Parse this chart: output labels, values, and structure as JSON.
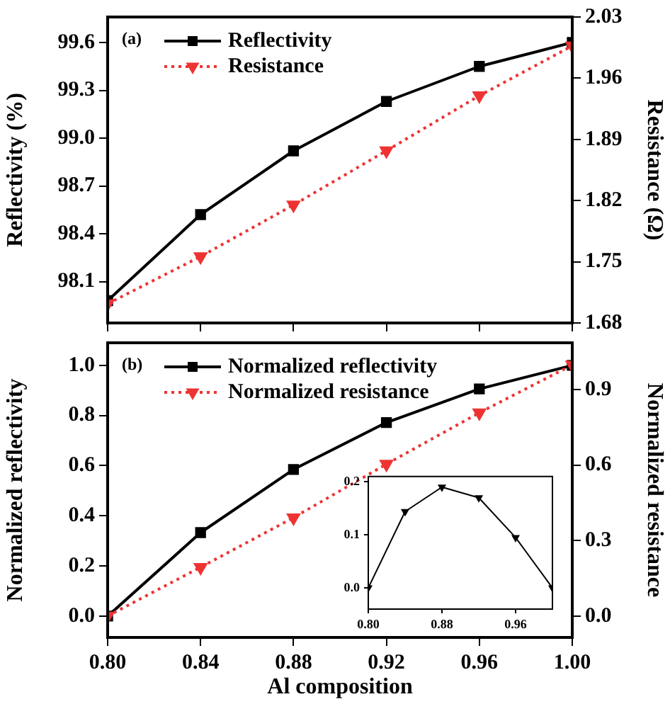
{
  "chart_data": [
    {
      "type": "line",
      "ylabel": "Reflectivity (%)",
      "y2label": "Resistance (Ω)",
      "annotations": [
        "(a)"
      ],
      "x": [
        0.8,
        0.84,
        0.88,
        0.92,
        0.96,
        1.0
      ],
      "series": [
        {
          "name": "Reflectivity",
          "color": "#000000",
          "values": [
            97.98,
            98.52,
            98.92,
            99.23,
            99.45,
            99.6
          ],
          "marker": "square",
          "line_style": "solid"
        },
        {
          "name": "Resistance",
          "color": "#ee3333",
          "values": [
            1.702,
            1.756,
            1.815,
            1.877,
            1.94,
            1.997
          ],
          "axis": "y2",
          "marker": "triangle",
          "line_style": "dotted"
        }
      ],
      "xlim": [
        0.8,
        1.0
      ],
      "xticks": [
        {
          "value": 0.8,
          "label": null
        },
        {
          "value": 0.84,
          "label": null
        },
        {
          "value": 0.88,
          "label": null
        },
        {
          "value": 0.92,
          "label": null
        },
        {
          "value": 0.96,
          "label": null
        },
        {
          "value": 1.0,
          "label": null
        }
      ],
      "ylim": [
        97.84,
        99.76
      ],
      "yticks": [
        98.1,
        98.4,
        98.7,
        {
          "value": 99.0,
          "label": "99.0"
        },
        99.3,
        99.6
      ],
      "y2lim": [
        1.68,
        2.03
      ],
      "y2ticks": [
        1.68,
        1.75,
        1.82,
        1.89,
        1.96,
        2.03
      ],
      "tick_labels": "y",
      "legend": "top left",
      "grid": false
    },
    {
      "type": "line",
      "xlabel": "Al composition",
      "ylabel": "Normalized reflectivity",
      "y2label": "Normalized resistance",
      "annotations": [
        "(b)"
      ],
      "x": [
        0.8,
        0.84,
        0.88,
        0.92,
        0.96,
        1.0
      ],
      "series": [
        {
          "name": "Normalized reflectivity",
          "color": "#000000",
          "values": [
            0.0,
            0.333,
            0.585,
            0.772,
            0.906,
            1.0
          ],
          "marker": "square",
          "line_style": "solid"
        },
        {
          "name": "Normalized resistance",
          "color": "#ee3333",
          "values": [
            0.0,
            0.194,
            0.391,
            0.604,
            0.808,
            0.998
          ],
          "axis": "y2",
          "marker": "triangle",
          "line_style": "dotted"
        }
      ],
      "xlim": [
        0.8,
        1.0
      ],
      "xticks": [
        {
          "value": 0.8,
          "label": "0.80"
        },
        0.84,
        0.88,
        0.92,
        0.96,
        {
          "value": 1.0,
          "label": "1.00"
        }
      ],
      "ylim": [
        -0.085,
        1.09
      ],
      "yticks": [
        {
          "value": 0.0,
          "label": "0.0"
        },
        0.2,
        0.4,
        0.6,
        0.8,
        {
          "value": 1.0,
          "label": "1.0"
        }
      ],
      "y2lim": [
        -0.085,
        1.086
      ],
      "y2ticks": [
        {
          "value": 0.0,
          "label": "0.0"
        },
        0.3,
        0.6,
        0.9
      ],
      "legend": "top left",
      "grid": false
    },
    {
      "type": "line",
      "x": [
        0.8,
        0.84,
        0.88,
        0.92,
        0.96,
        1.0
      ],
      "series": [
        {
          "color": "#000000",
          "values": [
            0.0,
            0.144,
            0.19,
            0.17,
            0.095,
            0.0
          ],
          "marker": "triangle",
          "line_style": "solid"
        }
      ],
      "xlim": [
        0.8,
        1.0
      ],
      "xticks": [
        {
          "value": 0.8,
          "label": "0.80"
        },
        0.88,
        0.96
      ],
      "ylim": [
        -0.04,
        0.21
      ],
      "yticks": [
        {
          "value": 0.0,
          "label": "0.0"
        },
        0.1,
        0.2
      ],
      "legend": false,
      "grid": false
    }
  ]
}
